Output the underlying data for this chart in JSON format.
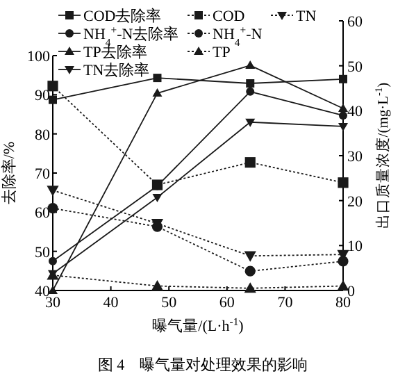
{
  "chart_data": {
    "type": "line",
    "xlabel": "曝气量/(L·h$^{-1}$)",
    "ylabel": "去除率/%",
    "y2label": "出口质量浓度/(mg·L$^{-1}$)",
    "annotations": [
      "图 4　曝气量对处理效果的影响"
    ],
    "x": [
      30,
      48,
      64,
      80
    ],
    "xlim": [
      30,
      80
    ],
    "xticks": [
      30,
      40,
      50,
      60,
      70,
      80
    ],
    "ylim": [
      40,
      100
    ],
    "yticks": [
      40,
      50,
      60,
      70,
      80,
      90,
      100
    ],
    "y2lim": [
      0,
      60
    ],
    "y2ticks": [
      0,
      10,
      20,
      30,
      40,
      50,
      60
    ],
    "legend": "top",
    "grid": false,
    "series": [
      {
        "name": "COD去除率",
        "color": "#1a1a1a",
        "values": [
          88.7,
          94.3,
          92.9,
          94
        ],
        "marker": "square",
        "line_style": "solid"
      },
      {
        "name": "COD",
        "color": "#1a1a1a",
        "values": [
          45.5,
          23.5,
          28.5,
          24
        ],
        "marker": "square",
        "line_style": "dotted",
        "axis": "y2"
      },
      {
        "name": "TN",
        "color": "#1a1a1a",
        "values": [
          22.3,
          14.9,
          7.7,
          8
        ],
        "marker": "triangle-down",
        "line_style": "dotted",
        "axis": "y2"
      },
      {
        "name": "NH$_{4}$$^{+}$-N去除率",
        "color": "#1a1a1a",
        "values": [
          47.5,
          66.7,
          90.8,
          84.7
        ],
        "marker": "circle",
        "line_style": "solid"
      },
      {
        "name": "NH$_{4}$$^{+}$-N",
        "color": "#1a1a1a",
        "values": [
          18.3,
          14.2,
          4.3,
          6.5
        ],
        "marker": "circle",
        "line_style": "dotted",
        "axis": "y2"
      },
      {
        "name": "TP去除率",
        "color": "#1a1a1a",
        "values": [
          40,
          90.4,
          97.5,
          86.5
        ],
        "marker": "triangle",
        "line_style": "solid"
      },
      {
        "name": "TP",
        "color": "#1a1a1a",
        "values": [
          3.4,
          1,
          0.5,
          1
        ],
        "marker": "triangle",
        "line_style": "dotted",
        "axis": "y2"
      },
      {
        "name": "TN去除率",
        "color": "#1a1a1a",
        "values": [
          44.3,
          63.8,
          83,
          81.9
        ],
        "marker": "triangle-down",
        "line_style": "solid"
      }
    ]
  }
}
